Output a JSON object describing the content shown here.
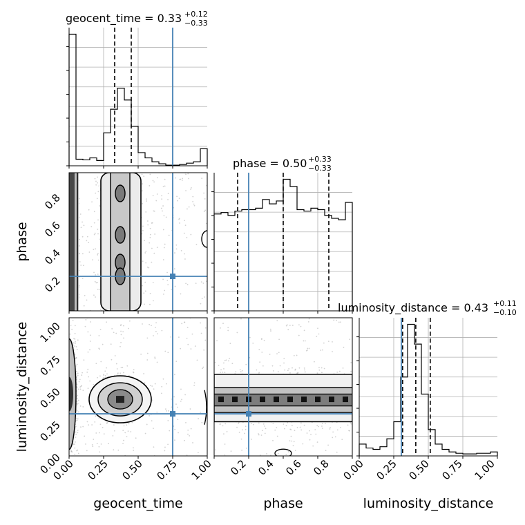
{
  "chart_data": {
    "type": "corner",
    "parameters": [
      "geocent_time",
      "phase",
      "luminosity_distance"
    ],
    "truths": {
      "geocent_time": 0.75,
      "phase": 0.25,
      "luminosity_distance": 0.32
    },
    "truth_color": "#4682b4",
    "contour_color": "#000000",
    "diagonal": [
      {
        "name": "geocent_time",
        "title_prefix": "geocent_time = ",
        "median": "0.33",
        "plus": "+0.12",
        "minus": "−0.33",
        "quantiles": [
          0.0,
          0.33,
          0.45
        ],
        "range": [
          0,
          1
        ],
        "bin_edges": [
          0,
          0.05,
          0.1,
          0.15,
          0.2,
          0.25,
          0.3,
          0.35,
          0.4,
          0.45,
          0.5,
          0.55,
          0.6,
          0.65,
          0.7,
          0.75,
          0.8,
          0.85,
          0.9,
          0.95,
          1.0
        ],
        "counts": [
          1.0,
          0.05,
          0.045,
          0.06,
          0.04,
          0.25,
          0.43,
          0.59,
          0.5,
          0.3,
          0.1,
          0.06,
          0.03,
          0.015,
          0.005,
          0.005,
          0.01,
          0.02,
          0.03,
          0.13
        ]
      },
      {
        "name": "phase",
        "title_prefix": "phase = ",
        "median": "0.50",
        "plus": "+0.33",
        "minus": "−0.33",
        "quantiles": [
          0.17,
          0.5,
          0.83
        ],
        "range": [
          0,
          1
        ],
        "tick_values": [
          0.2,
          0.4,
          0.6,
          0.8
        ],
        "bin_edges": [
          0,
          0.05,
          0.1,
          0.15,
          0.2,
          0.25,
          0.3,
          0.35,
          0.4,
          0.45,
          0.5,
          0.55,
          0.6,
          0.65,
          0.7,
          0.75,
          0.8,
          0.85,
          0.9,
          0.95,
          1.0
        ],
        "counts": [
          0.67,
          0.68,
          0.66,
          0.69,
          0.7,
          0.7,
          0.71,
          0.77,
          0.74,
          0.76,
          0.91,
          0.86,
          0.7,
          0.69,
          0.71,
          0.7,
          0.66,
          0.64,
          0.63,
          0.75
        ]
      },
      {
        "name": "luminosity_distance",
        "title_prefix": "luminosity_distance = ",
        "median": "0.43",
        "plus": "+0.11",
        "minus": "−0.10",
        "quantiles": [
          0.33,
          0.43,
          0.54
        ],
        "range": [
          0,
          1.05
        ],
        "bin_edges": [
          0,
          0.0525,
          0.105,
          0.1575,
          0.21,
          0.2625,
          0.315,
          0.3675,
          0.42,
          0.4725,
          0.525,
          0.5775,
          0.63,
          0.6825,
          0.735,
          0.7875,
          0.84,
          0.8925,
          0.945,
          0.9975,
          1.05
        ],
        "counts": [
          0.09,
          0.06,
          0.05,
          0.07,
          0.13,
          0.26,
          0.6,
          1.0,
          0.85,
          0.47,
          0.2,
          0.09,
          0.05,
          0.03,
          0.02,
          0.015,
          0.015,
          0.02,
          0.02,
          0.03
        ]
      }
    ],
    "axis_ticks": {
      "geocent_time": [
        "0.00",
        "0.25",
        "0.50",
        "0.75",
        "1.00"
      ],
      "phase": [
        "0.2",
        "0.4",
        "0.6",
        "0.8"
      ],
      "luminosity_distance": [
        "0.00",
        "0.25",
        "0.50",
        "0.75",
        "1.00"
      ]
    },
    "axis_labels": {
      "x": [
        "geocent_time",
        "phase",
        "luminosity_distance"
      ],
      "y": [
        "phase",
        "luminosity_distance"
      ]
    }
  }
}
